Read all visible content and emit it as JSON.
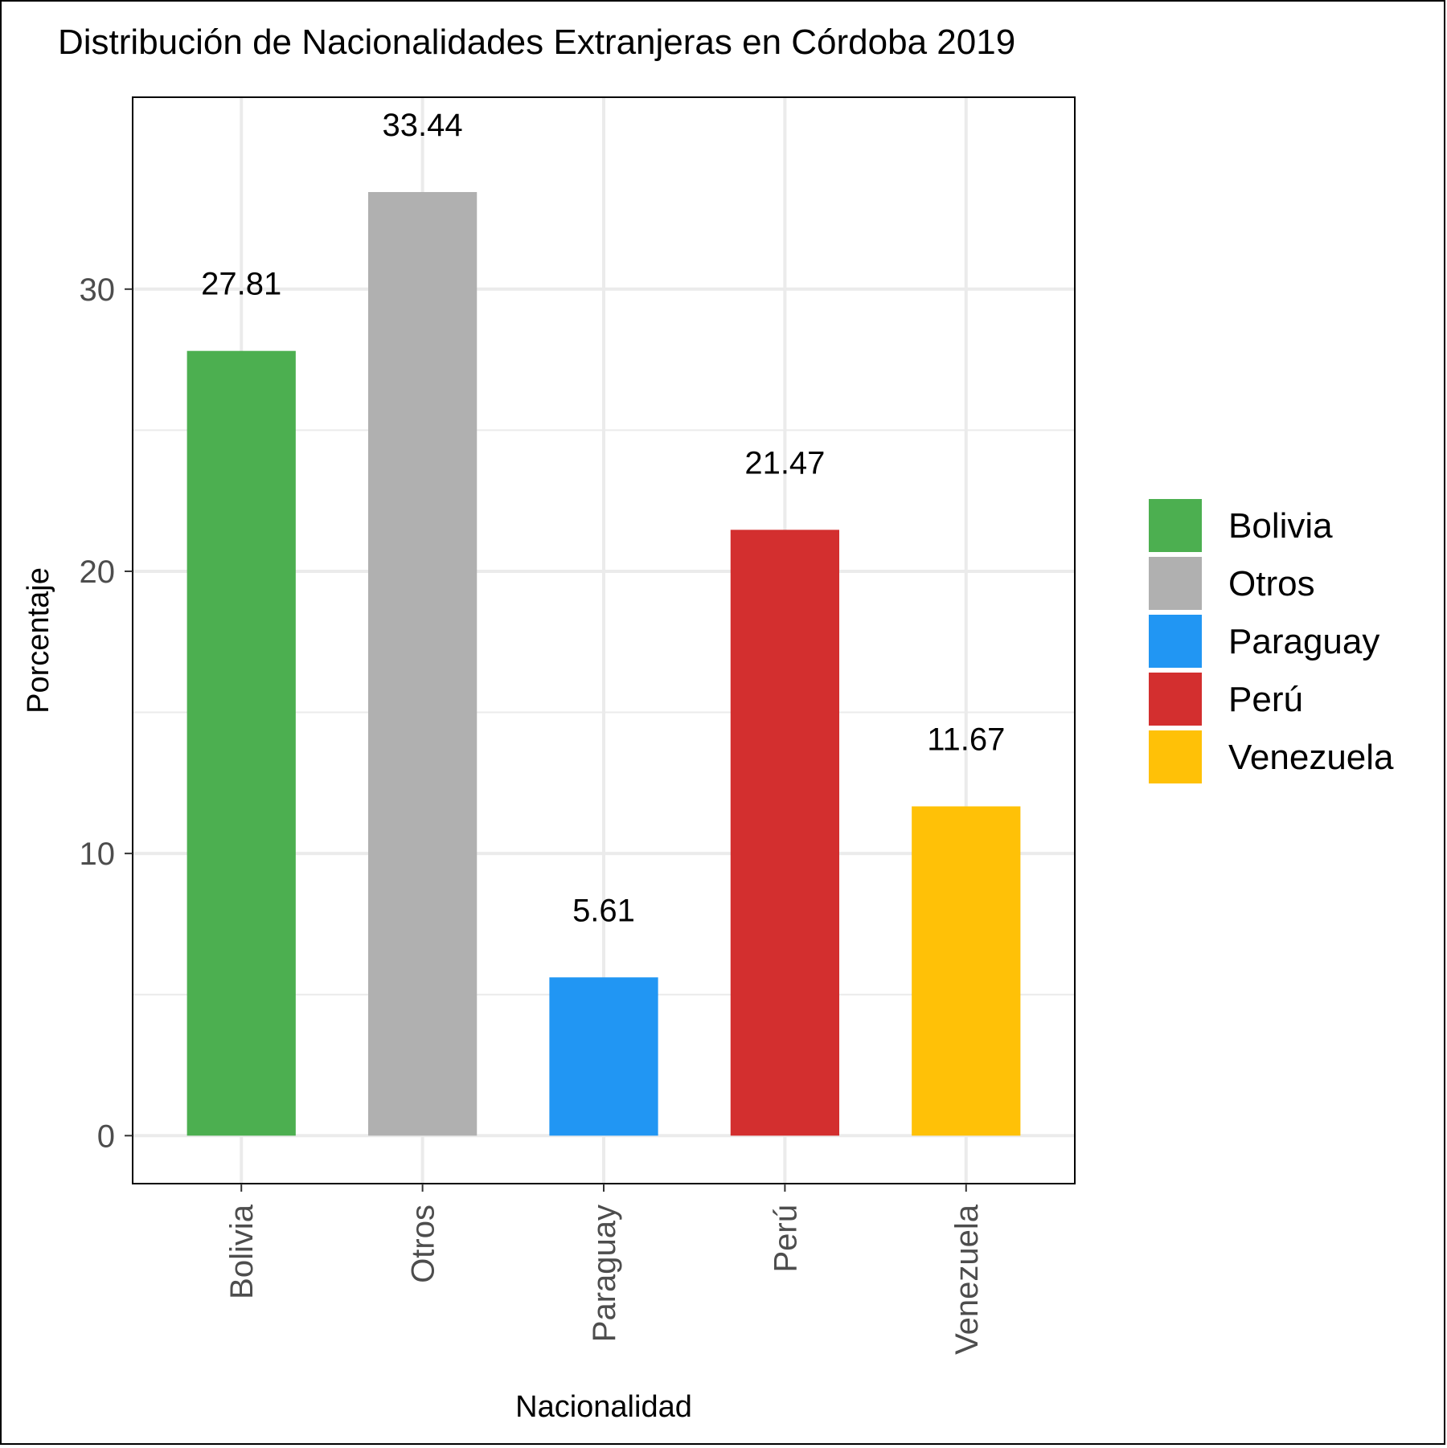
{
  "chart_data": {
    "type": "bar",
    "title": "Distribución de Nacionalidades Extranjeras en Córdoba 2019",
    "xlabel": "Nacionalidad",
    "ylabel": "Porcentaje",
    "categories": [
      "Bolivia",
      "Otros",
      "Paraguay",
      "Perú",
      "Venezuela"
    ],
    "values": [
      27.81,
      33.44,
      5.61,
      21.47,
      11.67
    ],
    "value_labels": [
      "27.81",
      "33.44",
      "5.61",
      "21.47",
      "11.67"
    ],
    "colors": [
      "#4CAF50",
      "#B0B0B0",
      "#2196F3",
      "#D32F2F",
      "#FFC107"
    ],
    "ylim": [
      -1.7,
      36.8
    ],
    "yticks": [
      0,
      10,
      20,
      30
    ],
    "ytick_labels": [
      "0",
      "10",
      "20",
      "30"
    ],
    "grid": true,
    "legend": {
      "position": "right",
      "entries": [
        "Bolivia",
        "Otros",
        "Paraguay",
        "Perú",
        "Venezuela"
      ]
    },
    "x_tick_rotation": 90
  }
}
